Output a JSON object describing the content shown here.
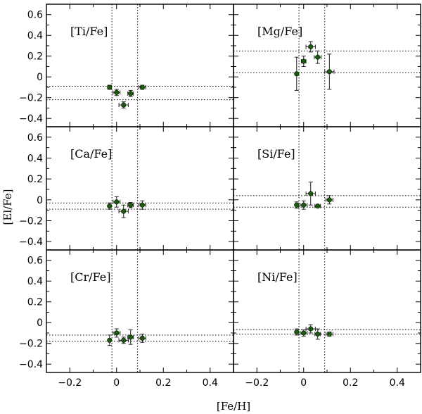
{
  "chart_data": {
    "type": "scatter",
    "layout": "3x2 grid of panels",
    "xlabel": "[Fe/H]",
    "ylabel": "[El/Fe]",
    "xlim": [
      -0.3,
      0.5
    ],
    "ylim": [
      -0.48,
      0.7
    ],
    "x_ticks": [
      -0.2,
      0,
      0.2,
      0.4
    ],
    "x_tick_labels": [
      "−0.2",
      "0",
      "0.2",
      "0.4"
    ],
    "y_ticks": [
      0.6,
      0.4,
      0.2,
      0,
      -0.2,
      -0.4
    ],
    "y_tick_labels": [
      "0.6",
      "0.4",
      "0.2",
      "0",
      "−0.2",
      "−0.4"
    ],
    "vertical_reference_lines": [
      -0.02,
      0.09
    ],
    "panels": [
      {
        "label": "[Ti/Fe]",
        "horizontal_reference_lines": [
          -0.09,
          -0.22
        ],
        "points": [
          {
            "x": -0.03,
            "y": -0.1,
            "xerr": 0.008,
            "yerr": 0.02
          },
          {
            "x": 0.0,
            "y": -0.15,
            "xerr": 0.015,
            "yerr": 0.03
          },
          {
            "x": 0.03,
            "y": -0.27,
            "xerr": 0.02,
            "yerr": 0.03
          },
          {
            "x": 0.06,
            "y": -0.16,
            "xerr": 0.012,
            "yerr": 0.03
          },
          {
            "x": 0.11,
            "y": -0.1,
            "xerr": 0.015,
            "yerr": 0.02
          }
        ]
      },
      {
        "label": "[Mg/Fe]",
        "horizontal_reference_lines": [
          0.25,
          0.04
        ],
        "points": [
          {
            "x": -0.03,
            "y": 0.03,
            "xerr": 0.0,
            "yerr": 0.16
          },
          {
            "x": 0.0,
            "y": 0.15,
            "xerr": 0.01,
            "yerr": 0.05
          },
          {
            "x": 0.03,
            "y": 0.29,
            "xerr": 0.02,
            "yerr": 0.05
          },
          {
            "x": 0.06,
            "y": 0.19,
            "xerr": 0.015,
            "yerr": 0.06
          },
          {
            "x": 0.11,
            "y": 0.05,
            "xerr": 0.02,
            "yerr": 0.17
          }
        ]
      },
      {
        "label": "[Ca/Fe]",
        "horizontal_reference_lines": [
          -0.03,
          -0.09
        ],
        "points": [
          {
            "x": -0.03,
            "y": -0.06,
            "xerr": 0.005,
            "yerr": 0.03
          },
          {
            "x": 0.0,
            "y": -0.02,
            "xerr": 0.015,
            "yerr": 0.05
          },
          {
            "x": 0.03,
            "y": -0.11,
            "xerr": 0.02,
            "yerr": 0.06
          },
          {
            "x": 0.06,
            "y": -0.05,
            "xerr": 0.012,
            "yerr": 0.025
          },
          {
            "x": 0.11,
            "y": -0.05,
            "xerr": 0.015,
            "yerr": 0.04
          }
        ]
      },
      {
        "label": "[Si/Fe]",
        "horizontal_reference_lines": [
          0.04,
          -0.07
        ],
        "points": [
          {
            "x": -0.03,
            "y": -0.05,
            "xerr": 0.005,
            "yerr": 0.03
          },
          {
            "x": 0.0,
            "y": -0.05,
            "xerr": 0.015,
            "yerr": 0.04
          },
          {
            "x": 0.03,
            "y": 0.06,
            "xerr": 0.02,
            "yerr": 0.11
          },
          {
            "x": 0.06,
            "y": -0.06,
            "xerr": 0.012,
            "yerr": 0.0
          },
          {
            "x": 0.11,
            "y": 0.0,
            "xerr": 0.015,
            "yerr": 0.04
          }
        ]
      },
      {
        "label": "[Cr/Fe]",
        "horizontal_reference_lines": [
          -0.12,
          -0.18
        ],
        "points": [
          {
            "x": -0.03,
            "y": -0.17,
            "xerr": 0.005,
            "yerr": 0.05
          },
          {
            "x": 0.0,
            "y": -0.1,
            "xerr": 0.015,
            "yerr": 0.04
          },
          {
            "x": 0.03,
            "y": -0.17,
            "xerr": 0.02,
            "yerr": 0.03
          },
          {
            "x": 0.06,
            "y": -0.14,
            "xerr": 0.012,
            "yerr": 0.07
          },
          {
            "x": 0.11,
            "y": -0.15,
            "xerr": 0.015,
            "yerr": 0.04
          }
        ]
      },
      {
        "label": "[Ni/Fe]",
        "horizontal_reference_lines": [
          -0.07,
          -0.11
        ],
        "points": [
          {
            "x": -0.03,
            "y": -0.09,
            "xerr": 0.005,
            "yerr": 0.03
          },
          {
            "x": 0.0,
            "y": -0.1,
            "xerr": 0.015,
            "yerr": 0.03
          },
          {
            "x": 0.03,
            "y": -0.06,
            "xerr": 0.02,
            "yerr": 0.04
          },
          {
            "x": 0.06,
            "y": -0.11,
            "xerr": 0.012,
            "yerr": 0.05
          },
          {
            "x": 0.11,
            "y": -0.11,
            "xerr": 0.015,
            "yerr": 0.02
          }
        ]
      }
    ]
  },
  "colors": {
    "point_fill": "#1f5a12",
    "point_stroke": "#0a2a05",
    "frame": "#000000",
    "background": "#ffffff"
  }
}
